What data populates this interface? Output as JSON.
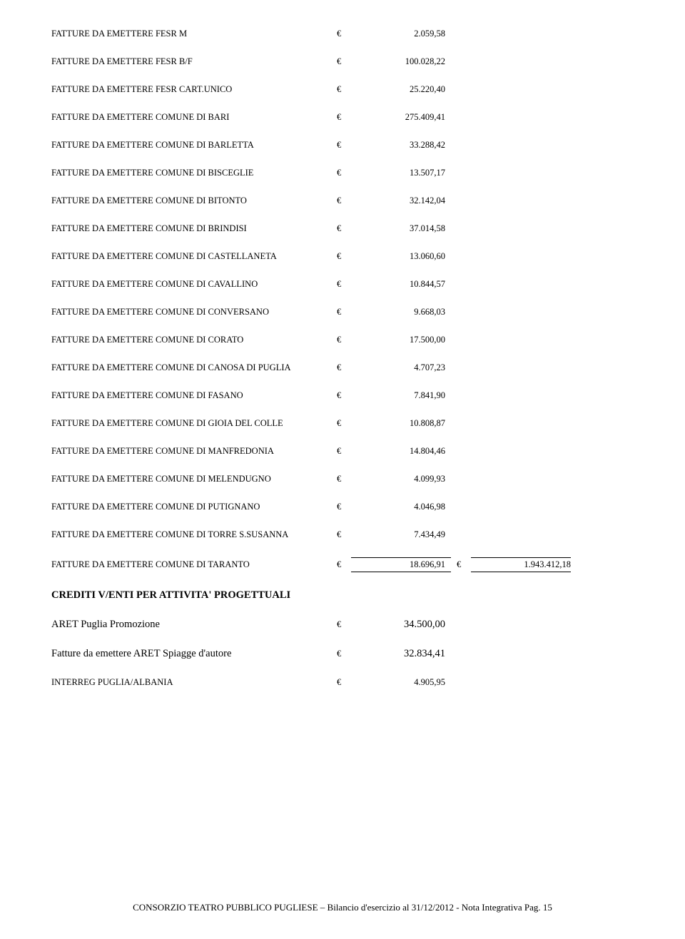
{
  "currency": "€",
  "rows": [
    {
      "label": "FATTURE DA EMETTERE FESR M",
      "value": "2.059,58"
    },
    {
      "label": "FATTURE DA EMETTERE FESR B/F",
      "value": "100.028,22"
    },
    {
      "label": "FATTURE DA EMETTERE FESR CART.UNICO",
      "value": "25.220,40"
    },
    {
      "label": "FATTURE DA EMETTERE COMUNE DI BARI",
      "value": "275.409,41"
    },
    {
      "label": "FATTURE DA EMETTERE COMUNE DI BARLETTA",
      "value": "33.288,42"
    },
    {
      "label": "FATTURE DA EMETTERE COMUNE DI BISCEGLIE",
      "value": "13.507,17"
    },
    {
      "label": "FATTURE DA EMETTERE COMUNE DI BITONTO",
      "value": "32.142,04"
    },
    {
      "label": "FATTURE DA EMETTERE COMUNE DI BRINDISI",
      "value": "37.014,58"
    },
    {
      "label": "FATTURE DA EMETTERE COMUNE DI CASTELLANETA",
      "value": "13.060,60"
    },
    {
      "label": "FATTURE DA EMETTERE COMUNE DI CAVALLINO",
      "value": "10.844,57"
    },
    {
      "label": "FATTURE DA EMETTERE COMUNE DI CONVERSANO",
      "value": "9.668,03"
    },
    {
      "label": "FATTURE DA EMETTERE COMUNE DI CORATO",
      "value": "17.500,00"
    },
    {
      "label": "FATTURE DA EMETTERE COMUNE DI CANOSA DI PUGLIA",
      "value": "4.707,23"
    },
    {
      "label": "FATTURE DA EMETTERE COMUNE DI FASANO",
      "value": "7.841,90"
    },
    {
      "label": "FATTURE DA EMETTERE COMUNE DI GIOIA DEL COLLE",
      "value": "10.808,87"
    },
    {
      "label": "FATTURE DA EMETTERE COMUNE DI MANFREDONIA",
      "value": "14.804,46"
    },
    {
      "label": "FATTURE DA EMETTERE COMUNE DI MELENDUGNO",
      "value": "4.099,93"
    },
    {
      "label": "FATTURE DA EMETTERE COMUNE DI PUTIGNANO",
      "value": "4.046,98"
    },
    {
      "label": "FATTURE DA EMETTERE COMUNE DI TORRE S.SUSANNA",
      "value": "7.434,49"
    }
  ],
  "sumrow": {
    "label": "FATTURE DA EMETTERE COMUNE DI TARANTO",
    "value": "18.696,91",
    "total": "1.943.412,18"
  },
  "section2": {
    "heading": "CREDITI V/ENTI PER ATTIVITA' PROGETTUALI",
    "rows": [
      {
        "label": "ARET Puglia Promozione",
        "value": "34.500,00",
        "large": true
      },
      {
        "label": "Fatture da emettere ARET Spiagge d'autore",
        "value": "32.834,41",
        "large": true
      },
      {
        "label": "INTERREG PUGLIA/ALBANIA",
        "value": "4.905,95",
        "large": false
      }
    ]
  },
  "footer": "CONSORZIO TEATRO PUBBLICO PUGLIESE – Bilancio d'esercizio al 31/12/2012  - Nota Integrativa Pag. 15"
}
